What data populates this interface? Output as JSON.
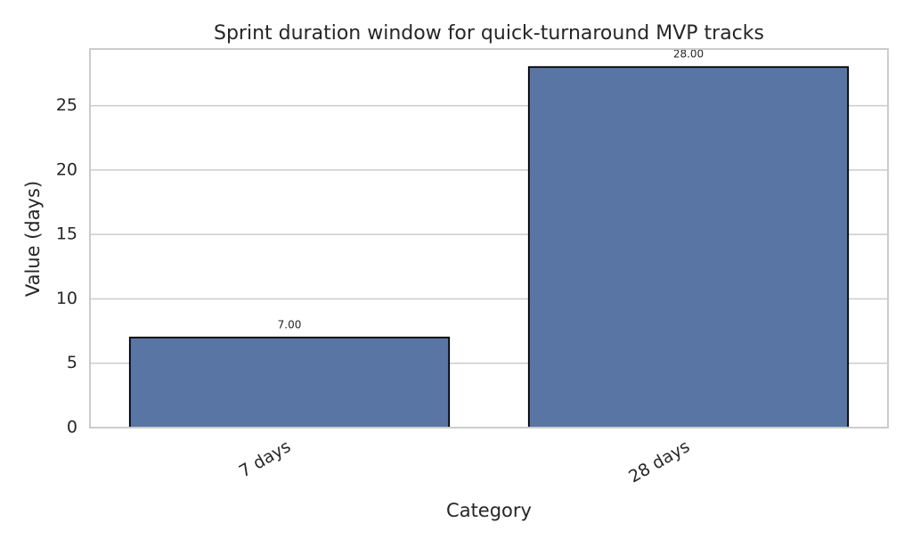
{
  "chart_data": {
    "type": "bar",
    "title": "Sprint duration window for quick-turnaround MVP tracks",
    "x_label": "Category",
    "y_label": "Value (days)",
    "categories": [
      "7 days",
      "28 days"
    ],
    "values": [
      7,
      28
    ],
    "value_labels": [
      "7.00",
      "28.00"
    ],
    "color": "#5975a4",
    "ylim": [
      0,
      29.4
    ],
    "yticks": [
      0,
      5,
      10,
      15,
      20,
      25
    ],
    "grid": true
  }
}
